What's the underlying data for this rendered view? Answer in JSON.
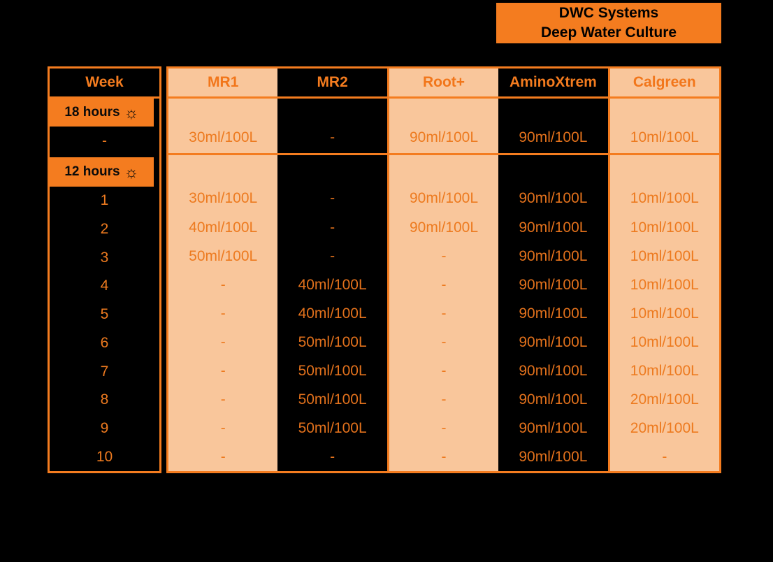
{
  "banner": {
    "line1": "DWC Systems",
    "line2": "Deep Water Culture"
  },
  "colors": {
    "background": "#000000",
    "accent_orange": "#F47C1F",
    "peach": "#F9C69B",
    "value_text_orange": "#ED7A1F",
    "label_text_black": "#0A0A0A"
  },
  "chart_data": {
    "type": "table",
    "title": "DWC Systems Deep Water Culture",
    "week_header": "Week",
    "columns": [
      {
        "label": "MR1",
        "theme": "peach",
        "divider_left": false
      },
      {
        "label": "MR2",
        "theme": "black",
        "divider_left": false
      },
      {
        "label": "Root+",
        "theme": "peach",
        "divider_left": true
      },
      {
        "label": "AminoXtrem",
        "theme": "black",
        "divider_left": false
      },
      {
        "label": "Calgreen",
        "theme": "peach",
        "divider_left": true
      }
    ],
    "sections": [
      {
        "label": "18 hours",
        "sun_icon": "☼",
        "rows": [
          {
            "week": "-",
            "values": [
              "30ml/100L",
              "-",
              "90ml/100L",
              "90ml/100L",
              "10ml/100L"
            ]
          }
        ]
      },
      {
        "label": "12 hours",
        "sun_icon": "☼",
        "rows": [
          {
            "week": "1",
            "values": [
              "30ml/100L",
              "-",
              "90ml/100L",
              "90ml/100L",
              "10ml/100L"
            ]
          },
          {
            "week": "2",
            "values": [
              "40ml/100L",
              "-",
              "90ml/100L",
              "90ml/100L",
              "10ml/100L"
            ]
          },
          {
            "week": "3",
            "values": [
              "50ml/100L",
              "-",
              "-",
              "90ml/100L",
              "10ml/100L"
            ]
          },
          {
            "week": "4",
            "values": [
              "-",
              "40ml/100L",
              "-",
              "90ml/100L",
              "10ml/100L"
            ]
          },
          {
            "week": "5",
            "values": [
              "-",
              "40ml/100L",
              "-",
              "90ml/100L",
              "10ml/100L"
            ]
          },
          {
            "week": "6",
            "values": [
              "-",
              "50ml/100L",
              "-",
              "90ml/100L",
              "10ml/100L"
            ]
          },
          {
            "week": "7",
            "values": [
              "-",
              "50ml/100L",
              "-",
              "90ml/100L",
              "10ml/100L"
            ]
          },
          {
            "week": "8",
            "values": [
              "-",
              "50ml/100L",
              "-",
              "90ml/100L",
              "20ml/100L"
            ]
          },
          {
            "week": "9",
            "values": [
              "-",
              "50ml/100L",
              "-",
              "90ml/100L",
              "20ml/100L"
            ]
          },
          {
            "week": "10",
            "values": [
              "-",
              "-",
              "-",
              "90ml/100L",
              "-"
            ]
          }
        ]
      }
    ]
  }
}
